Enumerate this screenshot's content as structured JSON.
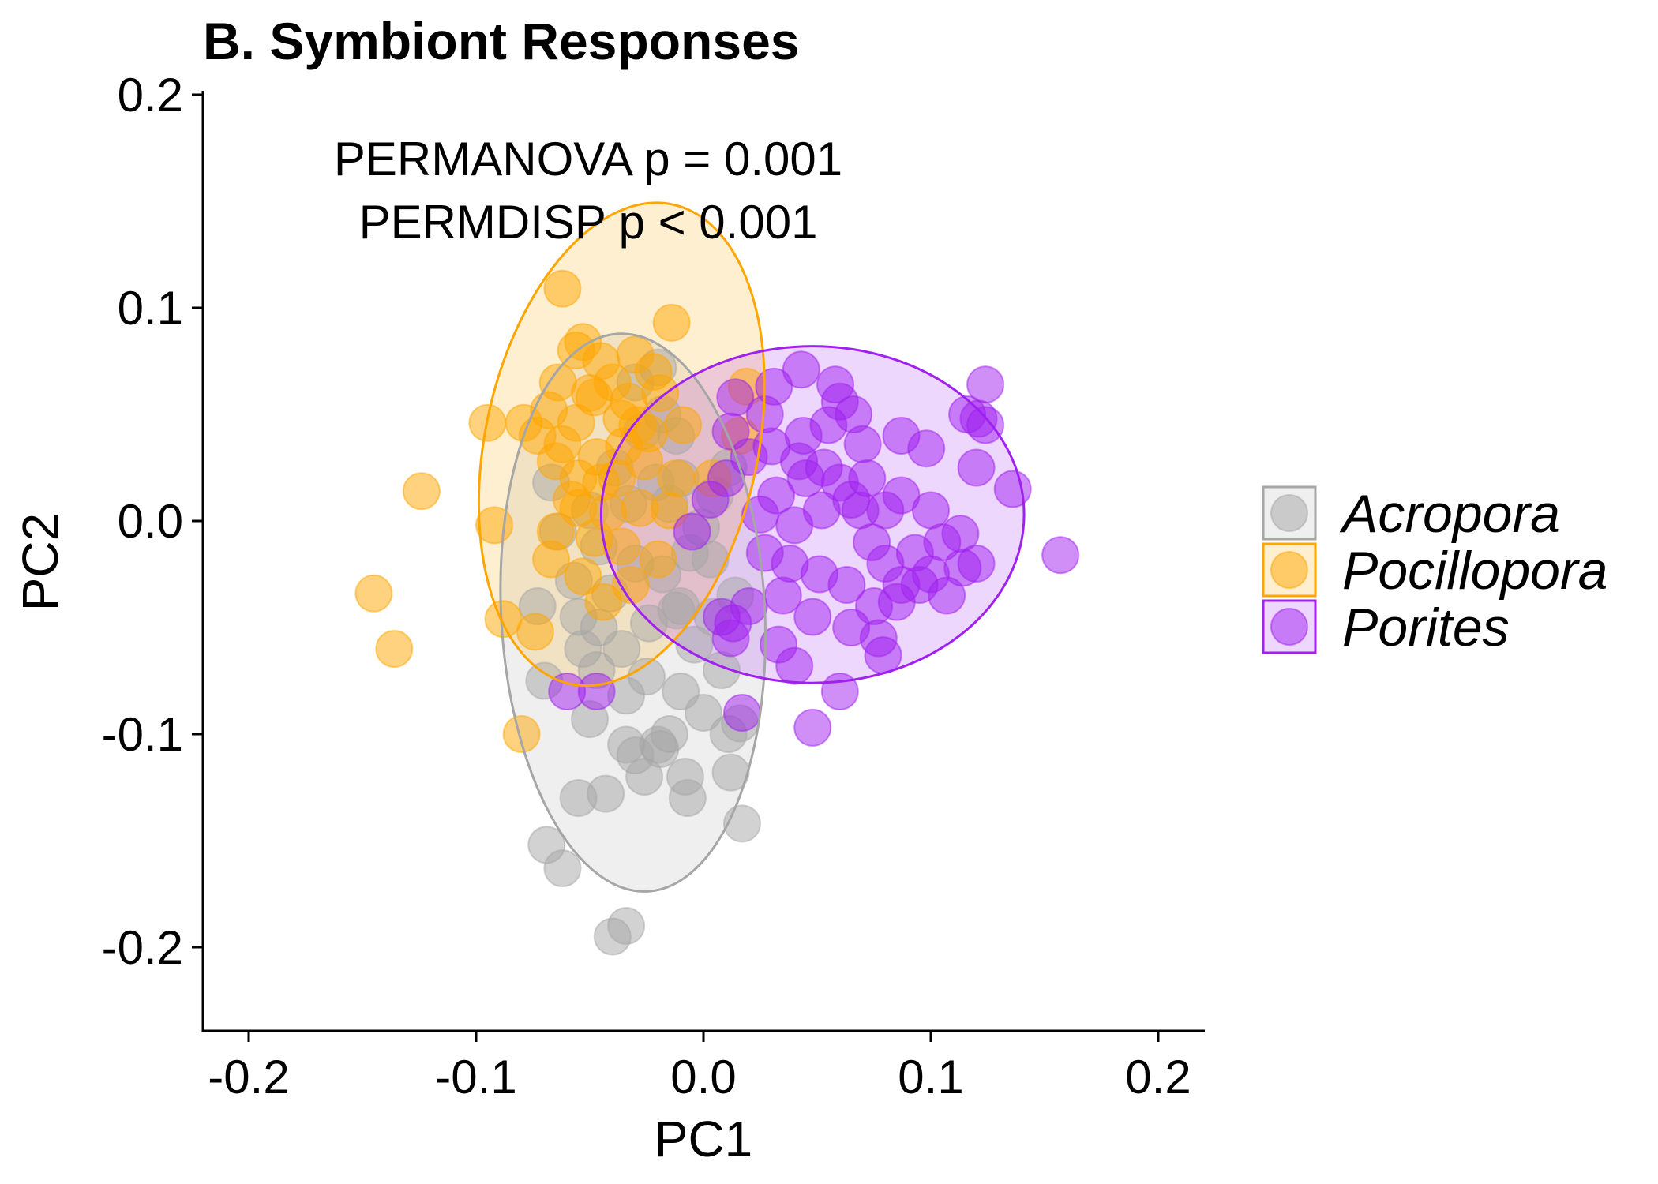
{
  "chart_data": {
    "type": "scatter",
    "title": "B. Symbiont Responses",
    "xlabel": "PC1",
    "ylabel": "PC2",
    "xlim": [
      -0.22,
      0.22
    ],
    "ylim": [
      -0.24,
      0.2
    ],
    "x_ticks": [
      -0.2,
      -0.1,
      0.0,
      0.1,
      0.2
    ],
    "x_tick_labels": [
      "-0.2",
      "-0.1",
      "0.0",
      "0.1",
      "0.2"
    ],
    "y_ticks": [
      -0.2,
      -0.1,
      0.0,
      0.1,
      0.2
    ],
    "y_tick_labels": [
      "-0.2",
      "-0.1",
      "0.0",
      "0.1",
      "0.2"
    ],
    "grid": false,
    "legend_position": "right",
    "annotations": [
      "PERMANOVA p = 0.001",
      "PERMDISP p < 0.001"
    ],
    "series": [
      {
        "name": "Acropora",
        "color": "#a6a6a6",
        "ellipse": {
          "center": [
            -0.031,
            -0.043
          ],
          "semi_axes": [
            0.058,
            0.131
          ],
          "angle_deg": 3
        },
        "points": [
          [
            -0.04,
            -0.195
          ],
          [
            -0.034,
            -0.19
          ],
          [
            -0.069,
            -0.152
          ],
          [
            -0.062,
            -0.163
          ],
          [
            -0.055,
            -0.13
          ],
          [
            -0.043,
            -0.128
          ],
          [
            -0.026,
            -0.12
          ],
          [
            -0.008,
            -0.12
          ],
          [
            0.017,
            -0.142
          ],
          [
            -0.007,
            -0.13
          ],
          [
            0.012,
            -0.118
          ],
          [
            -0.03,
            -0.11
          ],
          [
            -0.02,
            -0.105
          ],
          [
            -0.015,
            -0.1
          ],
          [
            -0.034,
            -0.105
          ],
          [
            -0.019,
            -0.107
          ],
          [
            0.0,
            -0.09
          ],
          [
            0.011,
            -0.1
          ],
          [
            -0.05,
            -0.093
          ],
          [
            -0.07,
            -0.075
          ],
          [
            -0.047,
            -0.07
          ],
          [
            -0.034,
            -0.082
          ],
          [
            -0.025,
            -0.073
          ],
          [
            -0.01,
            -0.08
          ],
          [
            0.008,
            -0.07
          ],
          [
            -0.036,
            -0.06
          ],
          [
            -0.046,
            -0.05
          ],
          [
            -0.055,
            -0.045
          ],
          [
            -0.041,
            -0.034
          ],
          [
            -0.057,
            -0.028
          ],
          [
            -0.024,
            -0.048
          ],
          [
            -0.01,
            -0.04
          ],
          [
            0.004,
            -0.045
          ],
          [
            -0.018,
            -0.025
          ],
          [
            -0.03,
            -0.02
          ],
          [
            -0.006,
            -0.015
          ],
          [
            -0.046,
            -0.012
          ],
          [
            -0.064,
            -0.005
          ],
          [
            -0.067,
            0.018
          ],
          [
            -0.05,
            0.005
          ],
          [
            -0.033,
            0.008
          ],
          [
            -0.015,
            0.008
          ],
          [
            -0.001,
            -0.003
          ],
          [
            0.003,
            -0.018
          ],
          [
            -0.021,
            0.018
          ],
          [
            -0.039,
            0.025
          ],
          [
            -0.027,
            0.042
          ],
          [
            -0.012,
            0.04
          ],
          [
            -0.03,
            0.065
          ],
          [
            -0.02,
            0.072
          ],
          [
            -0.018,
            0.05
          ],
          [
            -0.073,
            -0.04
          ],
          [
            -0.053,
            -0.06
          ],
          [
            0.014,
            -0.035
          ],
          [
            -0.004,
            -0.058
          ],
          [
            0.016,
            -0.095
          ],
          [
            -0.012,
            -0.042
          ],
          [
            0.005,
            0.012
          ],
          [
            0.011,
            0.025
          ],
          [
            -0.01,
            0.02
          ]
        ]
      },
      {
        "name": "Pocillopora",
        "color": "#ffa500",
        "ellipse": {
          "center": [
            -0.036,
            0.036
          ],
          "semi_axes": [
            0.06,
            0.115
          ],
          "angle_deg": -12
        },
        "points": [
          [
            -0.062,
            0.109
          ],
          [
            -0.014,
            0.093
          ],
          [
            -0.053,
            0.084
          ],
          [
            -0.056,
            0.08
          ],
          [
            -0.045,
            0.075
          ],
          [
            -0.03,
            0.078
          ],
          [
            -0.04,
            0.065
          ],
          [
            -0.064,
            0.065
          ],
          [
            -0.05,
            0.06
          ],
          [
            -0.033,
            0.056
          ],
          [
            -0.019,
            0.06
          ],
          [
            -0.029,
            0.045
          ],
          [
            -0.056,
            0.046
          ],
          [
            -0.079,
            0.046
          ],
          [
            -0.095,
            0.046
          ],
          [
            -0.073,
            0.04
          ],
          [
            -0.062,
            0.036
          ],
          [
            -0.047,
            0.03
          ],
          [
            -0.035,
            0.035
          ],
          [
            -0.065,
            0.028
          ],
          [
            -0.055,
            0.02
          ],
          [
            -0.045,
            0.018
          ],
          [
            -0.124,
            0.014
          ],
          [
            -0.055,
            0.006
          ],
          [
            -0.042,
            0.004
          ],
          [
            -0.028,
            0.006
          ],
          [
            -0.092,
            -0.002
          ],
          [
            -0.065,
            -0.005
          ],
          [
            -0.048,
            -0.008
          ],
          [
            -0.036,
            -0.012
          ],
          [
            -0.02,
            -0.018
          ],
          [
            -0.067,
            -0.018
          ],
          [
            -0.053,
            -0.026
          ],
          [
            -0.032,
            -0.03
          ],
          [
            -0.145,
            -0.034
          ],
          [
            -0.044,
            -0.038
          ],
          [
            -0.088,
            -0.046
          ],
          [
            -0.074,
            -0.052
          ],
          [
            -0.136,
            -0.06
          ],
          [
            -0.08,
            -0.1
          ],
          [
            0.019,
            0.063
          ],
          [
            -0.024,
            0.041
          ],
          [
            -0.012,
            0.02
          ],
          [
            -0.036,
            0.048
          ],
          [
            -0.048,
            0.058
          ],
          [
            -0.022,
            0.07
          ],
          [
            0.016,
            0.04
          ],
          [
            0.004,
            0.02
          ],
          [
            -0.015,
            0.005
          ],
          [
            -0.038,
            0.02
          ],
          [
            -0.068,
            0.052
          ],
          [
            -0.058,
            0.01
          ],
          [
            -0.026,
            0.028
          ],
          [
            -0.009,
            0.045
          ]
        ]
      },
      {
        "name": "Porites",
        "color": "#a020f0",
        "ellipse": {
          "center": [
            0.048,
            0.003
          ],
          "semi_axes": [
            0.093,
            0.079
          ],
          "angle_deg": 0
        },
        "points": [
          [
            0.043,
            0.071
          ],
          [
            0.058,
            0.064
          ],
          [
            0.031,
            0.063
          ],
          [
            0.06,
            0.056
          ],
          [
            0.066,
            0.05
          ],
          [
            0.124,
            0.064
          ],
          [
            0.121,
            0.048
          ],
          [
            0.124,
            0.045
          ],
          [
            0.116,
            0.05
          ],
          [
            0.044,
            0.04
          ],
          [
            0.07,
            0.036
          ],
          [
            0.087,
            0.04
          ],
          [
            0.098,
            0.034
          ],
          [
            0.136,
            0.015
          ],
          [
            0.12,
            0.025
          ],
          [
            0.157,
            -0.016
          ],
          [
            0.12,
            -0.02
          ],
          [
            0.113,
            -0.006
          ],
          [
            0.1,
            0.005
          ],
          [
            0.087,
            0.012
          ],
          [
            0.093,
            -0.015
          ],
          [
            0.1,
            -0.025
          ],
          [
            0.107,
            -0.035
          ],
          [
            0.087,
            -0.03
          ],
          [
            0.08,
            -0.02
          ],
          [
            0.074,
            -0.01
          ],
          [
            0.069,
            0.005
          ],
          [
            0.06,
            0.018
          ],
          [
            0.053,
            0.025
          ],
          [
            0.045,
            0.02
          ],
          [
            0.032,
            0.012
          ],
          [
            0.02,
            0.03
          ],
          [
            0.012,
            0.042
          ],
          [
            0.01,
            0.02
          ],
          [
            0.003,
            0.01
          ],
          [
            -0.005,
            -0.005
          ],
          [
            0.027,
            -0.015
          ],
          [
            0.038,
            -0.02
          ],
          [
            0.051,
            -0.025
          ],
          [
            0.063,
            -0.03
          ],
          [
            0.075,
            -0.04
          ],
          [
            0.048,
            -0.045
          ],
          [
            0.035,
            -0.035
          ],
          [
            0.02,
            -0.04
          ],
          [
            0.008,
            -0.045
          ],
          [
            0.012,
            -0.055
          ],
          [
            0.065,
            -0.05
          ],
          [
            0.077,
            -0.055
          ],
          [
            0.079,
            -0.063
          ],
          [
            0.04,
            -0.068
          ],
          [
            0.06,
            -0.08
          ],
          [
            0.017,
            -0.09
          ],
          [
            0.048,
            -0.097
          ],
          [
            -0.06,
            -0.08
          ],
          [
            -0.047,
            -0.08
          ],
          [
            0.013,
            -0.048
          ],
          [
            0.085,
            -0.038
          ],
          [
            0.095,
            -0.03
          ],
          [
            0.072,
            0.02
          ],
          [
            0.055,
            0.045
          ],
          [
            0.027,
            0.05
          ],
          [
            0.014,
            0.058
          ],
          [
            0.065,
            0.01
          ],
          [
            0.052,
            0.005
          ],
          [
            0.04,
            -0.002
          ],
          [
            0.025,
            0.003
          ],
          [
            0.042,
            0.028
          ],
          [
            0.08,
            0.005
          ],
          [
            0.105,
            -0.01
          ],
          [
            0.114,
            -0.022
          ],
          [
            0.033,
            -0.058
          ],
          [
            0.03,
            0.035
          ]
        ]
      }
    ]
  }
}
